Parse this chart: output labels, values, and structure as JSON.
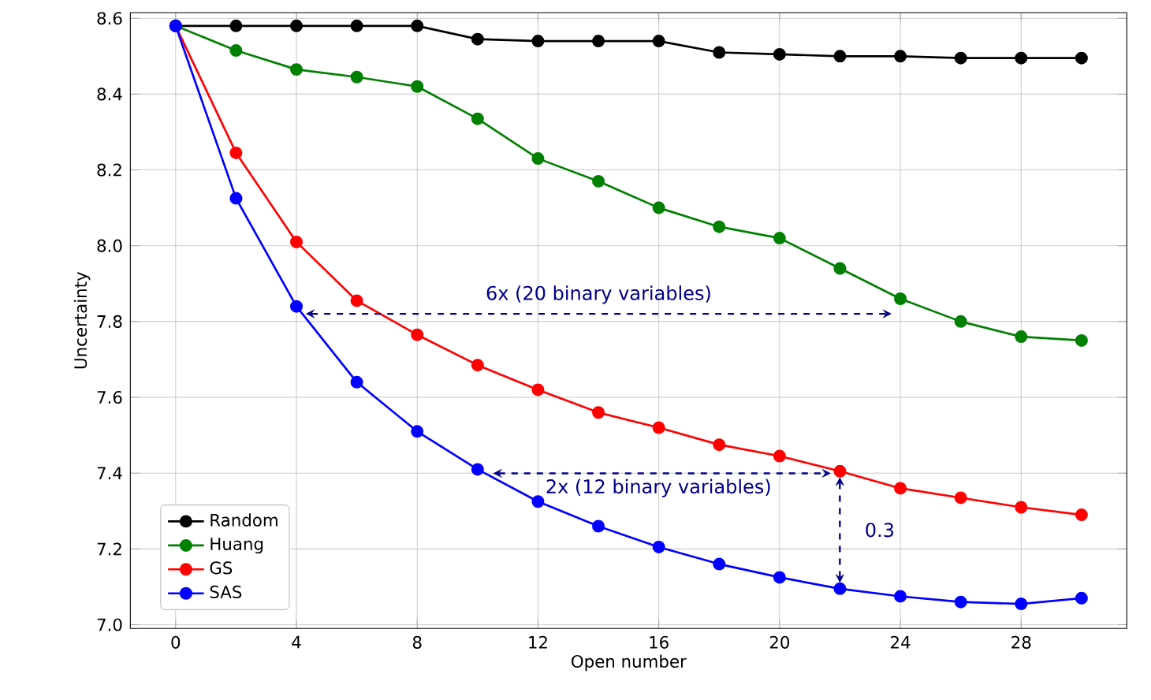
{
  "chart_data": {
    "type": "line",
    "xlabel": "Open number",
    "ylabel": "Uncertainty",
    "x": [
      0,
      2,
      4,
      6,
      8,
      10,
      12,
      14,
      16,
      18,
      20,
      22,
      24,
      26,
      28,
      30
    ],
    "series": [
      {
        "name": "Random",
        "color": "#000000",
        "values": [
          8.58,
          8.58,
          8.58,
          8.58,
          8.58,
          8.545,
          8.54,
          8.54,
          8.54,
          8.51,
          8.505,
          8.5,
          8.5,
          8.495,
          8.495,
          8.495
        ]
      },
      {
        "name": "Huang",
        "color": "#008000",
        "values": [
          8.58,
          8.515,
          8.465,
          8.445,
          8.42,
          8.335,
          8.23,
          8.17,
          8.1,
          8.05,
          8.02,
          7.94,
          7.86,
          7.8,
          7.76,
          7.75
        ]
      },
      {
        "name": "GS",
        "color": "#ff0000",
        "values": [
          8.58,
          8.245,
          8.01,
          7.855,
          7.765,
          7.685,
          7.62,
          7.56,
          7.52,
          7.475,
          7.445,
          7.405,
          7.36,
          7.335,
          7.31,
          7.29
        ]
      },
      {
        "name": "SAS",
        "color": "#0000ff",
        "values": [
          8.58,
          8.125,
          7.84,
          7.64,
          7.51,
          7.41,
          7.325,
          7.26,
          7.205,
          7.16,
          7.125,
          7.095,
          7.075,
          7.06,
          7.055,
          7.07
        ]
      }
    ],
    "annotations": [
      "6x (20 binary variables)",
      "2x (12 binary variables)",
      "0.3"
    ],
    "xlim": [
      -1.5,
      31.5
    ],
    "ylim": [
      6.99,
      8.615
    ],
    "xticks": [
      0,
      4,
      8,
      12,
      16,
      20,
      24,
      28
    ],
    "yticks": [
      {
        "value": 7.0,
        "label": "7.0"
      },
      {
        "value": 7.2,
        "label": "7.2"
      },
      {
        "value": 7.4,
        "label": "7.4"
      },
      {
        "value": 7.6,
        "label": "7.6"
      },
      {
        "value": 7.8,
        "label": "7.8"
      },
      {
        "value": 8.0,
        "label": "8.0"
      },
      {
        "value": 8.2,
        "label": "8.2"
      },
      {
        "value": 8.4,
        "label": "8.4"
      },
      {
        "value": 8.6,
        "label": "8.6"
      }
    ],
    "grid": true,
    "legend": "bottom left",
    "marker": "circle",
    "line_style": "solid"
  }
}
